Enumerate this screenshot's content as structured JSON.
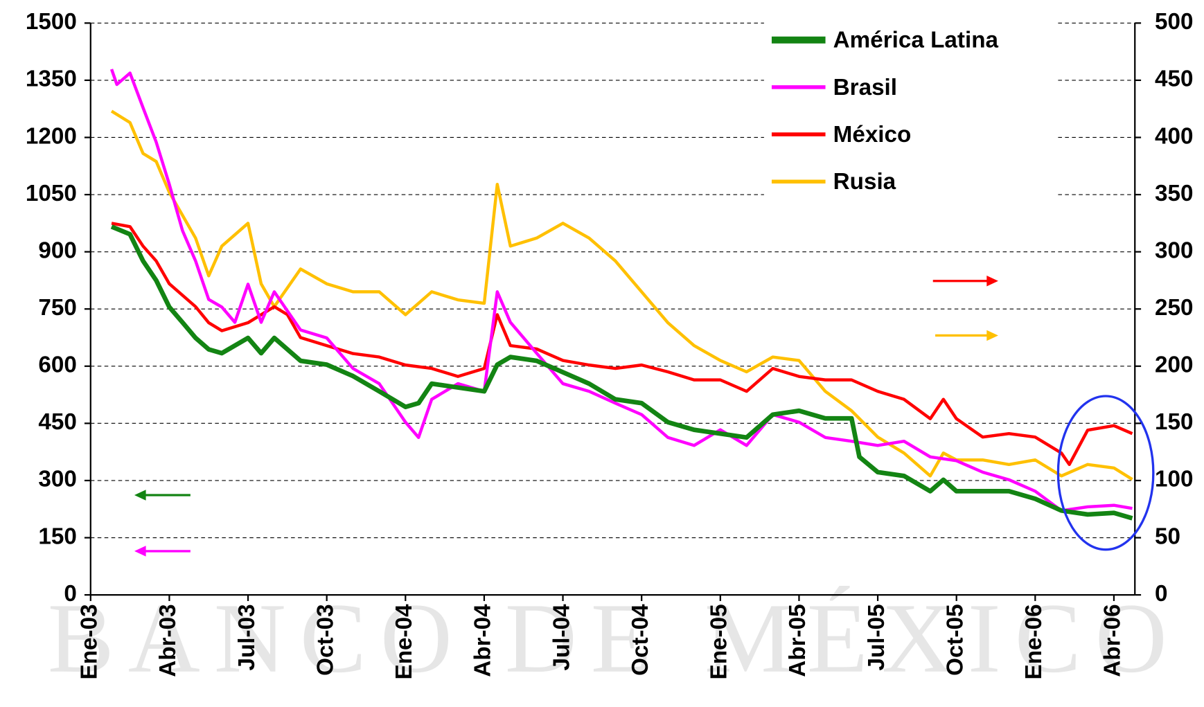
{
  "chart_data": {
    "type": "line",
    "watermark": "BANCO DE MÉXICO",
    "xlim": [
      0,
      39.8
    ],
    "xticks": [
      {
        "value": 0,
        "label": "Ene-03"
      },
      {
        "value": 3,
        "label": "Abr-03"
      },
      {
        "value": 6,
        "label": "Jul-03"
      },
      {
        "value": 9,
        "label": "Oct-03"
      },
      {
        "value": 12,
        "label": "Ene-04"
      },
      {
        "value": 15,
        "label": "Abr-04"
      },
      {
        "value": 18,
        "label": "Jul-04"
      },
      {
        "value": 21,
        "label": "Oct-04"
      },
      {
        "value": 24,
        "label": "Ene-05"
      },
      {
        "value": 27,
        "label": "Abr-05"
      },
      {
        "value": 30,
        "label": "Jul-05"
      },
      {
        "value": 33,
        "label": "Oct-05"
      },
      {
        "value": 36,
        "label": "Ene-06"
      },
      {
        "value": 39,
        "label": "Abr-06"
      }
    ],
    "ylim": [
      0,
      1500
    ],
    "yticks": [
      0,
      150,
      300,
      450,
      600,
      750,
      900,
      1050,
      1200,
      1350,
      1500
    ],
    "y2lim": [
      0,
      500
    ],
    "y2ticks": [
      0,
      50,
      100,
      150,
      200,
      250,
      300,
      350,
      400,
      450,
      500
    ],
    "grid": true,
    "series": [
      {
        "name": "Rusia",
        "color": "#ffc000",
        "axis": "y2",
        "x": [
          0.8,
          1.5,
          2,
          2.5,
          3,
          4,
          4.5,
          5,
          6,
          6.5,
          7,
          8,
          9,
          10,
          11,
          12,
          13,
          14,
          15,
          15.5,
          16,
          17,
          18,
          19,
          20,
          21,
          22,
          23,
          24,
          25,
          26,
          27,
          28,
          29,
          30,
          31,
          32,
          32.5,
          33,
          34,
          35,
          36,
          37,
          38,
          39,
          39.7
        ],
        "values": [
          423,
          413,
          386,
          379,
          352,
          312,
          279,
          305,
          325,
          272,
          252,
          285,
          272,
          265,
          265,
          245,
          265,
          258,
          255,
          359,
          305,
          312,
          325,
          312,
          292,
          265,
          238,
          218,
          205,
          195,
          208,
          205,
          178,
          161,
          138,
          124,
          104,
          124,
          118,
          118,
          114,
          118,
          104,
          114,
          111,
          101
        ]
      },
      {
        "name": "México",
        "color": "#ff0000",
        "axis": "y2",
        "x": [
          0.8,
          1.5,
          2,
          2.5,
          3,
          4,
          4.5,
          5,
          6,
          7,
          7.5,
          8,
          9,
          10,
          11,
          12,
          13,
          14,
          15,
          15.5,
          16,
          17,
          18,
          19,
          20,
          21,
          22,
          23,
          24,
          25,
          26,
          27,
          28,
          29,
          30,
          31,
          32,
          32.5,
          33,
          34,
          35,
          36,
          37,
          37.3,
          38,
          39,
          39.7
        ],
        "values": [
          325,
          322,
          305,
          292,
          272,
          252,
          238,
          231,
          238,
          252,
          245,
          225,
          218,
          211,
          208,
          201,
          198,
          191,
          198,
          245,
          218,
          215,
          205,
          201,
          198,
          201,
          195,
          188,
          188,
          178,
          198,
          191,
          188,
          188,
          178,
          171,
          154,
          171,
          154,
          138,
          141,
          138,
          124,
          114,
          144,
          148,
          141
        ]
      },
      {
        "name": "Brasil",
        "color": "#ff00ff",
        "x": [
          0.8,
          1,
          1.5,
          2,
          2.5,
          3,
          3.5,
          4,
          4.5,
          5,
          5.5,
          6,
          6.5,
          7,
          7.5,
          8,
          9,
          10,
          11,
          12,
          12.5,
          13,
          14,
          15,
          15.5,
          16,
          17,
          18,
          19,
          20,
          21,
          22,
          23,
          24,
          25,
          26,
          27,
          28,
          29,
          30,
          31,
          32,
          33,
          34,
          35,
          36,
          37,
          38,
          39,
          39.7
        ],
        "values": [
          1379,
          1339,
          1369,
          1278,
          1188,
          1077,
          956,
          876,
          775,
          755,
          715,
          815,
          715,
          795,
          745,
          695,
          674,
          594,
          554,
          453,
          413,
          513,
          554,
          534,
          795,
          715,
          634,
          554,
          534,
          503,
          473,
          413,
          392,
          433,
          392,
          473,
          453,
          413,
          403,
          392,
          403,
          362,
          352,
          322,
          302,
          272,
          221,
          231,
          235,
          227
        ]
      },
      {
        "name": "América Latina",
        "color": "#138413",
        "x": [
          0.8,
          1.5,
          2,
          2.5,
          3,
          3.5,
          4,
          4.5,
          5,
          6,
          6.5,
          7,
          7.5,
          8,
          9,
          10,
          11,
          12,
          12.5,
          13,
          14,
          15,
          15.5,
          16,
          17,
          18,
          19,
          20,
          21,
          22,
          23,
          24,
          25,
          26,
          27,
          28,
          29,
          29.3,
          30,
          31,
          32,
          32.5,
          33,
          34,
          35,
          36,
          37,
          38,
          39,
          39.7
        ],
        "values": [
          966,
          946,
          876,
          825,
          755,
          715,
          674,
          644,
          634,
          674,
          634,
          674,
          644,
          614,
          604,
          574,
          534,
          493,
          503,
          554,
          544,
          534,
          604,
          624,
          614,
          584,
          554,
          513,
          503,
          453,
          433,
          423,
          413,
          473,
          483,
          463,
          463,
          362,
          322,
          312,
          272,
          302,
          272,
          272,
          272,
          252,
          221,
          211,
          215,
          201
        ]
      }
    ],
    "legend_order": [
      3,
      2,
      1,
      0
    ]
  }
}
